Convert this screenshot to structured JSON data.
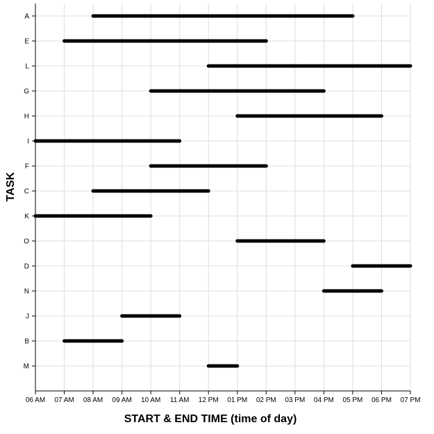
{
  "chart_data": {
    "type": "gantt",
    "xlabel": "START & END TIME (time of day)",
    "ylabel": "TASK",
    "x_ticks": [
      "06 AM",
      "07 AM",
      "08 AM",
      "09 AM",
      "10 AM",
      "11 AM",
      "12 PM",
      "01 PM",
      "02 PM",
      "03 PM",
      "04 PM",
      "05 PM",
      "06 PM",
      "07 PM"
    ],
    "xlim": [
      6,
      19
    ],
    "grid": true,
    "bar_color": "#000000",
    "grid_color": "#dddddd",
    "tasks": [
      {
        "task": "A",
        "start": 8,
        "end": 17
      },
      {
        "task": "E",
        "start": 7,
        "end": 14
      },
      {
        "task": "L",
        "start": 12,
        "end": 19
      },
      {
        "task": "G",
        "start": 10,
        "end": 16
      },
      {
        "task": "H",
        "start": 13,
        "end": 18
      },
      {
        "task": "I",
        "start": 6,
        "end": 11
      },
      {
        "task": "F",
        "start": 10,
        "end": 14
      },
      {
        "task": "C",
        "start": 8,
        "end": 12
      },
      {
        "task": "K",
        "start": 6,
        "end": 10
      },
      {
        "task": "O",
        "start": 13,
        "end": 16
      },
      {
        "task": "D",
        "start": 17,
        "end": 19
      },
      {
        "task": "N",
        "start": 16,
        "end": 18
      },
      {
        "task": "J",
        "start": 9,
        "end": 11
      },
      {
        "task": "B",
        "start": 7,
        "end": 9
      },
      {
        "task": "M",
        "start": 12,
        "end": 13
      }
    ]
  }
}
